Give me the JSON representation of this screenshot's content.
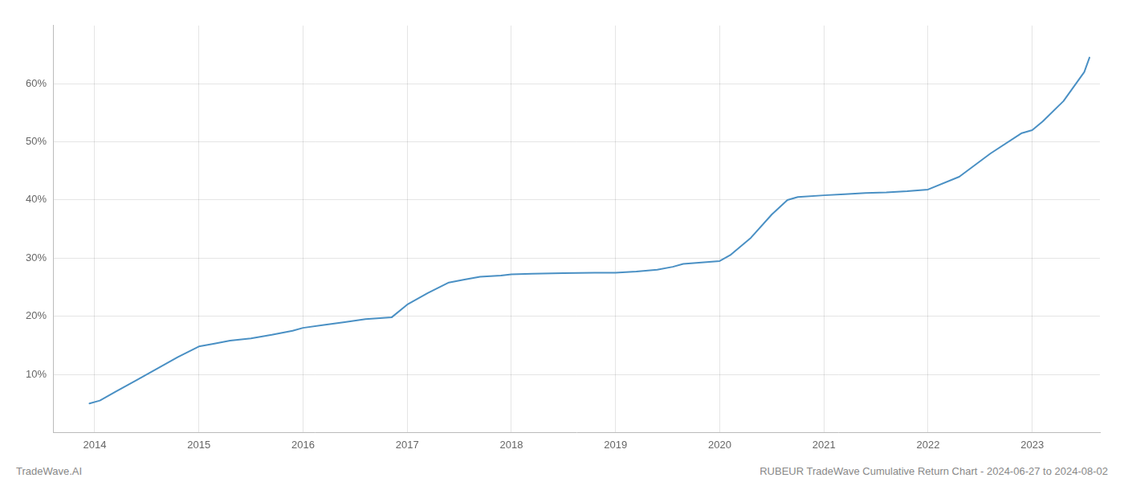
{
  "chart_data": {
    "type": "line",
    "annotations": [
      "TradeWave.AI",
      "RUBEUR TradeWave Cumulative Return Chart - 2024-06-27 to 2024-08-02"
    ],
    "x": [
      2013.95,
      2014.05,
      2014.2,
      2014.4,
      2014.6,
      2014.8,
      2015.0,
      2015.15,
      2015.3,
      2015.5,
      2015.7,
      2015.9,
      2016.0,
      2016.2,
      2016.4,
      2016.6,
      2016.85,
      2017.0,
      2017.2,
      2017.4,
      2017.55,
      2017.7,
      2017.9,
      2018.0,
      2018.2,
      2018.5,
      2018.8,
      2019.0,
      2019.2,
      2019.4,
      2019.55,
      2019.65,
      2019.8,
      2020.0,
      2020.1,
      2020.3,
      2020.5,
      2020.65,
      2020.75,
      2021.0,
      2021.2,
      2021.4,
      2021.6,
      2021.8,
      2022.0,
      2022.3,
      2022.6,
      2022.9,
      2023.0,
      2023.1,
      2023.3,
      2023.5,
      2023.55
    ],
    "values": [
      5.0,
      5.5,
      7.0,
      9.0,
      11.0,
      13.0,
      14.8,
      15.3,
      15.8,
      16.2,
      16.8,
      17.5,
      18.0,
      18.5,
      19.0,
      19.5,
      19.8,
      22.0,
      24.0,
      25.8,
      26.3,
      26.8,
      27.0,
      27.2,
      27.3,
      27.4,
      27.5,
      27.5,
      27.7,
      28.0,
      28.5,
      29.0,
      29.2,
      29.5,
      30.5,
      33.5,
      37.5,
      40.0,
      40.5,
      40.8,
      41.0,
      41.2,
      41.3,
      41.5,
      41.8,
      44.0,
      48.0,
      51.5,
      52.0,
      53.5,
      57.0,
      62.0,
      64.5
    ],
    "color": "#4a90c4",
    "xlim": [
      2013.6,
      2023.65
    ],
    "ylim": [
      0,
      70
    ],
    "xticks": [
      2014,
      2015,
      2016,
      2017,
      2018,
      2019,
      2020,
      2021,
      2022,
      2023
    ],
    "yticks": [
      {
        "value": 10,
        "label": "10%"
      },
      {
        "value": 20,
        "label": "20%"
      },
      {
        "value": 30,
        "label": "30%"
      },
      {
        "value": 40,
        "label": "40%"
      },
      {
        "value": 50,
        "label": "50%"
      },
      {
        "value": 60,
        "label": "60%"
      }
    ],
    "grid": true
  }
}
